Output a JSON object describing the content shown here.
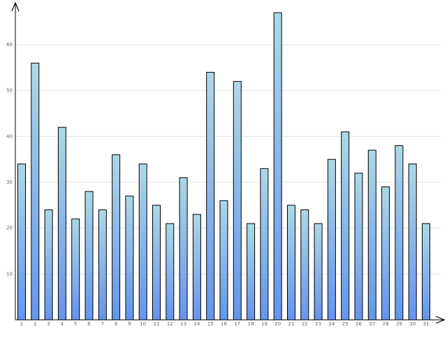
{
  "chart_data": {
    "type": "bar",
    "categories": [
      "1",
      "2",
      "3",
      "4",
      "5",
      "6",
      "7",
      "8",
      "9",
      "10",
      "11",
      "12",
      "13",
      "14",
      "15",
      "16",
      "17",
      "18",
      "19",
      "20",
      "21",
      "22",
      "23",
      "24",
      "25",
      "26",
      "27",
      "28",
      "29",
      "30",
      "31"
    ],
    "values": [
      34,
      56,
      24,
      42,
      22,
      28,
      24,
      36,
      27,
      34,
      25,
      21,
      31,
      23,
      54,
      26,
      52,
      21,
      33,
      67,
      25,
      24,
      21,
      35,
      41,
      32,
      37,
      29,
      38,
      34,
      21
    ],
    "gradient": [
      "#add8e6",
      "#6495ed"
    ],
    "ylim": [
      0,
      69
    ],
    "yticks": [
      10,
      20,
      30,
      40,
      50,
      60
    ],
    "grid": true
  }
}
